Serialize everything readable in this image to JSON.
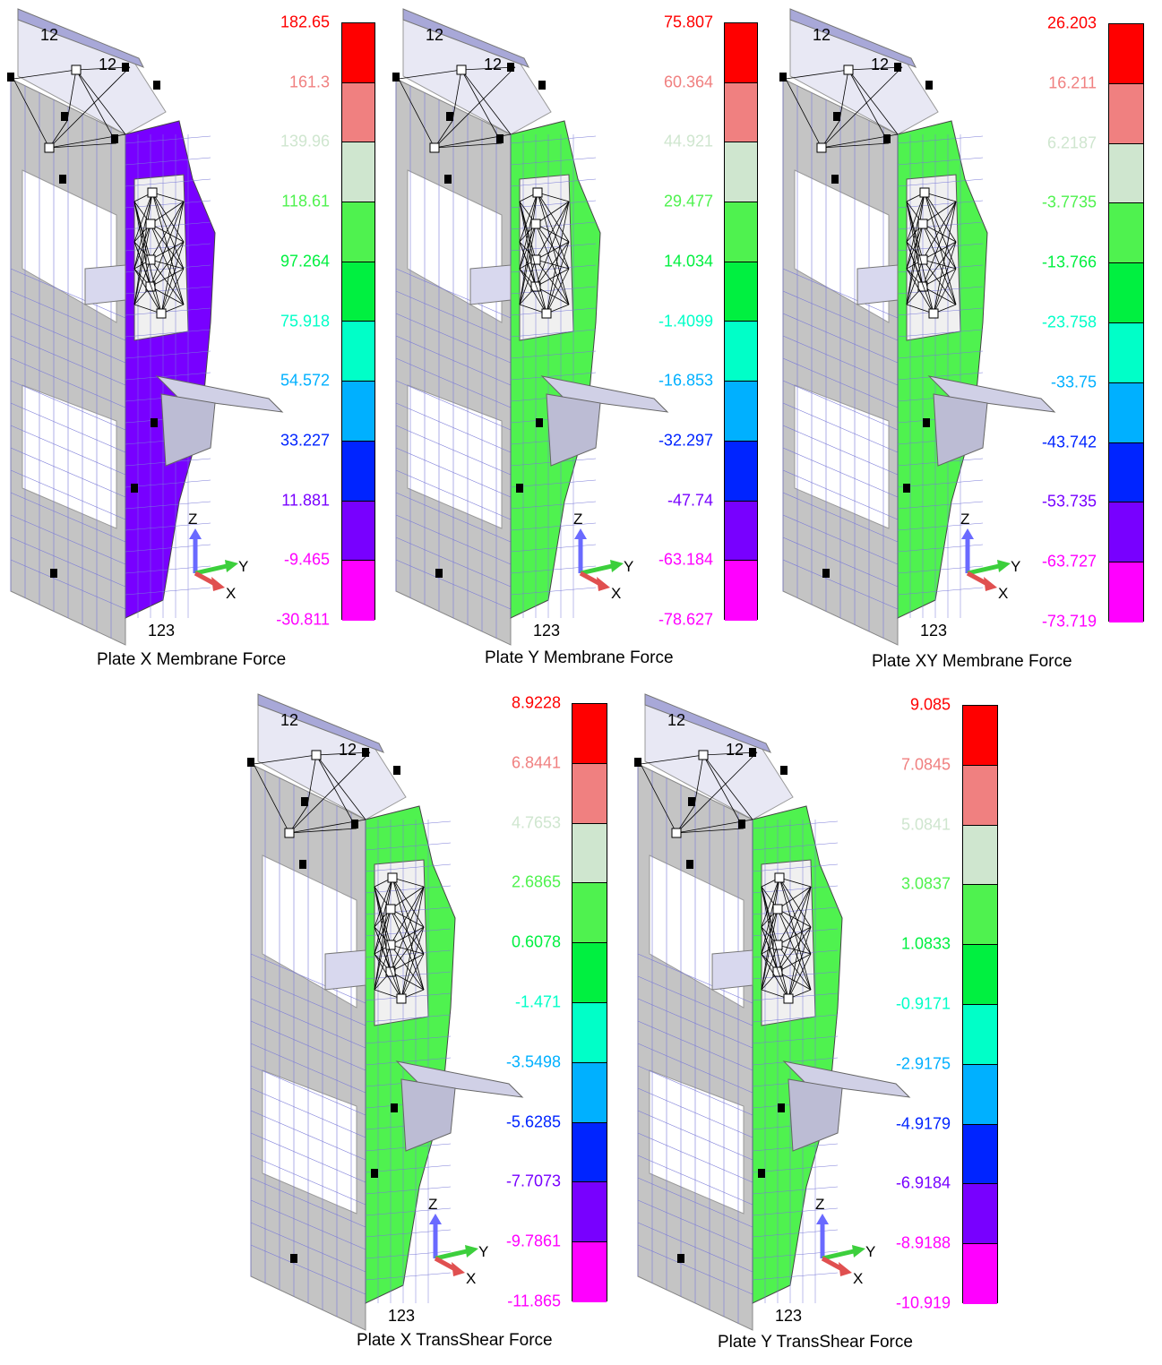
{
  "colors": {
    "scale": [
      "#ff0000",
      "#f08080",
      "#cfe6cf",
      "#4ff24f",
      "#00f040",
      "#00ffc8",
      "#00b0ff",
      "#0024ff",
      "#7800ff",
      "#ff00ff"
    ],
    "mesh_grey": "#c4c4c4",
    "mesh_line": "#7a7ad8",
    "top_cap": "#a8a8d8"
  },
  "panels": [
    {
      "caption": "Plate X Membrane Force",
      "node_top_a": "12",
      "node_top_b": "12",
      "node_bottom": "123",
      "axis": {
        "z": "Z",
        "y": "Y",
        "x": "X"
      },
      "labels": [
        "182.65",
        "161.3",
        "139.96",
        "118.61",
        "97.264",
        "75.918",
        "54.572",
        "33.227",
        "11.881",
        "-9.465",
        "-30.811"
      ],
      "dominant_color_index": 8
    },
    {
      "caption": "Plate Y Membrane Force",
      "node_top_a": "12",
      "node_top_b": "12",
      "node_bottom": "123",
      "axis": {
        "z": "Z",
        "y": "Y",
        "x": "X"
      },
      "labels": [
        "75.807",
        "60.364",
        "44.921",
        "29.477",
        "14.034",
        "-1.4099",
        "-16.853",
        "-32.297",
        "-47.74",
        "-63.184",
        "-78.627"
      ],
      "dominant_color_index": 3
    },
    {
      "caption": "Plate XY Membrane Force",
      "node_top_a": "12",
      "node_top_b": "12",
      "node_bottom": "123",
      "axis": {
        "z": "Z",
        "y": "Y",
        "x": "X"
      },
      "labels": [
        "26.203",
        "16.211",
        "6.2187",
        "-3.7735",
        "-13.766",
        "-23.758",
        "-33.75",
        "-43.742",
        "-53.735",
        "-63.727",
        "-73.719"
      ],
      "dominant_color_index": 3
    },
    {
      "caption": "Plate X TransShear Force",
      "node_top_a": "12",
      "node_top_b": "12",
      "node_bottom": "123",
      "axis": {
        "z": "Z",
        "y": "Y",
        "x": "X"
      },
      "labels": [
        "8.9228",
        "6.8441",
        "4.7653",
        "2.6865",
        "0.6078",
        "-1.471",
        "-3.5498",
        "-5.6285",
        "-7.7073",
        "-9.7861",
        "-11.865"
      ],
      "dominant_color_index": 3
    },
    {
      "caption": "Plate Y TransShear Force",
      "node_top_a": "12",
      "node_top_b": "12",
      "node_bottom": "123",
      "axis": {
        "z": "Z",
        "y": "Y",
        "x": "X"
      },
      "labels": [
        "9.085",
        "7.0845",
        "5.0841",
        "3.0837",
        "1.0833",
        "-0.9171",
        "-2.9175",
        "-4.9179",
        "-6.9184",
        "-8.9188",
        "-10.919"
      ],
      "dominant_color_index": 3
    }
  ]
}
